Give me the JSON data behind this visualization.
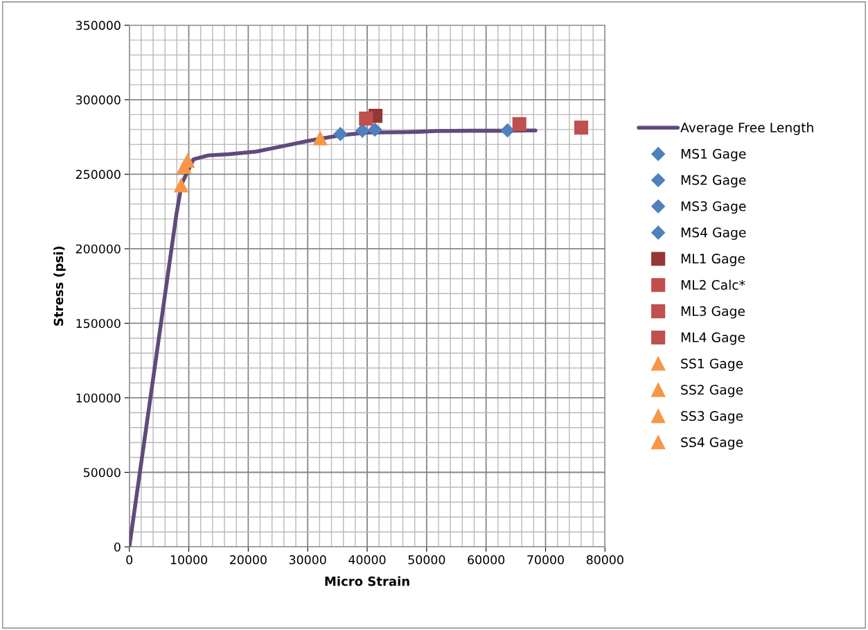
{
  "chart_data": {
    "type": "scatter",
    "xlabel": "Micro Strain",
    "ylabel": "Stress (psi)",
    "xlim": [
      0,
      80000
    ],
    "xticks": [
      0,
      10000,
      20000,
      30000,
      40000,
      50000,
      60000,
      70000,
      80000
    ],
    "ylim": [
      0,
      350000
    ],
    "yticks": [
      0,
      50000,
      100000,
      150000,
      200000,
      250000,
      300000,
      350000
    ],
    "grid": true,
    "legend": "right",
    "series": [
      {
        "name": "Average Free Length",
        "type": "line",
        "color": "#604a7b",
        "marker": "none",
        "line_style": "solid",
        "x": [
          0,
          7900,
          8800,
          10800,
          13200,
          16700,
          21300,
          25400,
          30100,
          35300,
          40000,
          45800,
          48700,
          51700,
          57500,
          63300,
          68300
        ],
        "values": [
          0,
          222700,
          243600,
          260000,
          262600,
          263400,
          265200,
          268500,
          272400,
          276000,
          278000,
          278200,
          278500,
          279000,
          279200,
          279200,
          279400
        ]
      },
      {
        "name": "MS1 Gage",
        "marker": "diamond",
        "color": "#4f81bd",
        "x": [
          35500
        ],
        "values": [
          277000
        ]
      },
      {
        "name": "MS2 Gage",
        "marker": "diamond",
        "color": "#4f81bd",
        "x": [
          63600
        ],
        "values": [
          279400
        ]
      },
      {
        "name": "MS3 Gage",
        "marker": "diamond",
        "color": "#4f81bd",
        "x": [
          41300
        ],
        "values": [
          279900
        ]
      },
      {
        "name": "MS4 Gage",
        "marker": "diamond",
        "color": "#4f81bd",
        "x": [
          39200
        ],
        "values": [
          279200
        ]
      },
      {
        "name": "ML1 Gage",
        "marker": "square",
        "color": "#953735",
        "x": [
          41400
        ],
        "values": [
          289200
        ]
      },
      {
        "name": "ML2 Calc*",
        "marker": "square",
        "color": "#c0504d",
        "x": [
          65600
        ],
        "values": [
          283600
        ]
      },
      {
        "name": "ML3 Gage",
        "marker": "square",
        "color": "#c0504d",
        "x": [
          76000
        ],
        "values": [
          281300
        ]
      },
      {
        "name": "ML4 Gage",
        "marker": "square",
        "color": "#c0504d",
        "x": [
          39800
        ],
        "values": [
          287300
        ]
      },
      {
        "name": "SS1 Gage",
        "marker": "triangle",
        "color": "#f79646",
        "x": [
          32100
        ],
        "values": [
          274000
        ]
      },
      {
        "name": "SS2 Gage",
        "marker": "triangle",
        "color": "#f79646",
        "x": [
          9800
        ],
        "values": [
          259000
        ]
      },
      {
        "name": "SS3 Gage",
        "marker": "triangle",
        "color": "#f79646",
        "x": [
          9200
        ],
        "values": [
          255000
        ]
      },
      {
        "name": "SS4 Gage",
        "marker": "triangle",
        "color": "#f79646",
        "x": [
          8700
        ],
        "values": [
          242500
        ]
      }
    ]
  }
}
